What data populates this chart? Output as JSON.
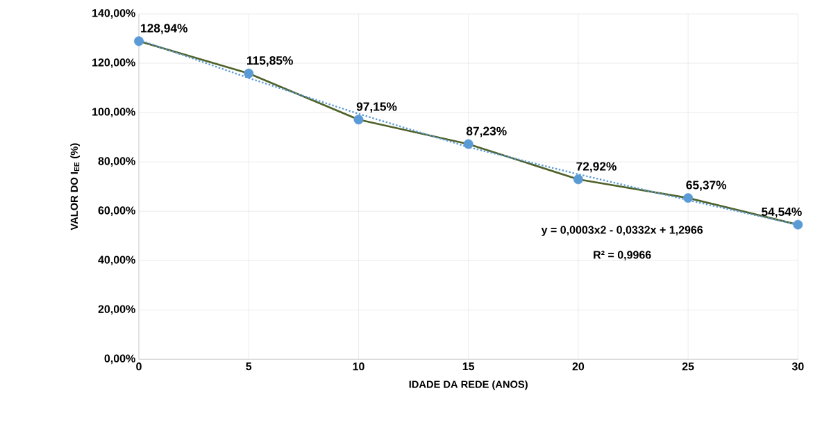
{
  "chart_data": {
    "type": "line",
    "xlabel": "IDADE DA REDE (ANOS)",
    "ylabel": "VALOR DO I$_{EE}$ (%)",
    "x": [
      0,
      5,
      10,
      15,
      20,
      25,
      30
    ],
    "series": [
      {
        "color": "#4f6228",
        "marker": "circle",
        "line_style": "solid",
        "colors": [
          "#5b9bd5",
          "#5b9bd5",
          "#5b9bd5",
          "#5b9bd5",
          "#5b9bd5",
          "#5b9bd5",
          "#5b9bd5"
        ],
        "values": [
          128.94,
          115.85,
          97.15,
          87.23,
          72.92,
          65.37,
          54.54
        ],
        "value_labels": [
          "128,94%",
          "115,85%",
          "97,15%",
          "87,23%",
          "72,92%",
          "65,37%",
          "54,54%"
        ]
      },
      {
        "color": "#5b9bd5",
        "marker": "none",
        "line_style": "dotted",
        "values": [
          129.5,
          114,
          99.5,
          86,
          75,
          64.5,
          54.5
        ]
      }
    ],
    "xlim": [
      0,
      30
    ],
    "xticks": [
      0,
      5,
      10,
      15,
      20,
      25,
      30
    ],
    "ylim": [
      0,
      140
    ],
    "yticks": [
      {
        "value": 0,
        "label": "0,00%"
      },
      {
        "value": 20,
        "label": "20,00%"
      },
      {
        "value": 40,
        "label": "40,00%"
      },
      {
        "value": 60,
        "label": "60,00%"
      },
      {
        "value": 80,
        "label": "80,00%"
      },
      {
        "value": 100,
        "label": "100,00%"
      },
      {
        "value": 120,
        "label": "120,00%"
      },
      {
        "value": 140,
        "label": "140,00%"
      }
    ],
    "grid": true,
    "annotations": [
      "y = 0,0003x2 - 0,0332x + 1,2966",
      "R² = 0,9966"
    ]
  }
}
